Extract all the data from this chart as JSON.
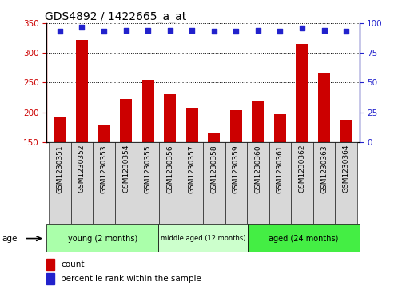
{
  "title": "GDS4892 / 1422665_a_at",
  "samples": [
    "GSM1230351",
    "GSM1230352",
    "GSM1230353",
    "GSM1230354",
    "GSM1230355",
    "GSM1230356",
    "GSM1230357",
    "GSM1230358",
    "GSM1230359",
    "GSM1230360",
    "GSM1230361",
    "GSM1230362",
    "GSM1230363",
    "GSM1230364"
  ],
  "counts": [
    192,
    322,
    178,
    222,
    255,
    230,
    207,
    165,
    204,
    220,
    197,
    315,
    267,
    187
  ],
  "percentiles": [
    93,
    97,
    93,
    94,
    94,
    94,
    94,
    93,
    93,
    94,
    93,
    96,
    94,
    93
  ],
  "ylim_left": [
    150,
    350
  ],
  "ylim_right": [
    0,
    100
  ],
  "yticks_left": [
    150,
    200,
    250,
    300,
    350
  ],
  "yticks_right": [
    0,
    25,
    50,
    75,
    100
  ],
  "bar_color": "#cc0000",
  "dot_color": "#2222cc",
  "age_groups": [
    {
      "label": "young (2 months)",
      "start": 0,
      "end": 5,
      "color": "#aaffaa"
    },
    {
      "label": "middle aged (12 months)",
      "start": 5,
      "end": 9,
      "color": "#ccffcc"
    },
    {
      "label": "aged (24 months)",
      "start": 9,
      "end": 14,
      "color": "#44ee44"
    }
  ],
  "age_label": "age",
  "legend_count_label": "count",
  "legend_percentile_label": "percentile rank within the sample",
  "title_fontsize": 10,
  "tick_label_fontsize": 6.5,
  "axis_tick_fontsize": 7.5
}
